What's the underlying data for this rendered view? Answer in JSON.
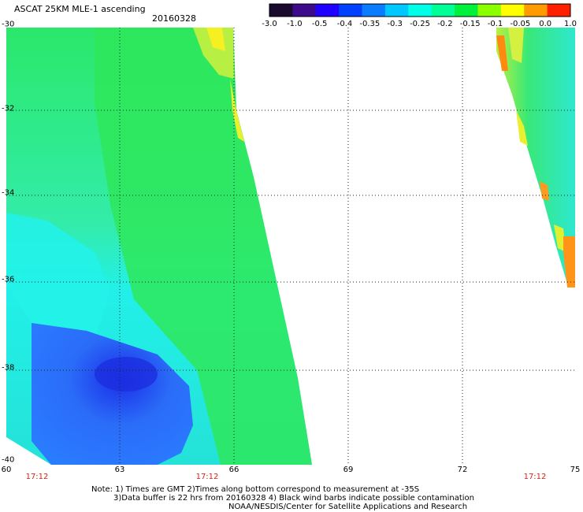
{
  "header": {
    "title": "ASCAT 25KM MLE-1 ascending",
    "date": "20160328"
  },
  "colorbar": {
    "labels": [
      "-3.0",
      "-1.0",
      "-0.5",
      "-0.4",
      "-0.35",
      "-0.3",
      "-0.25",
      "-0.2",
      "-0.15",
      "-0.1",
      "-0.05",
      "0.0",
      "1.0"
    ],
    "colors": [
      "#1a0a2e",
      "#3c0a8a",
      "#2000ff",
      "#0040ff",
      "#0a7cff",
      "#00c8ff",
      "#00ffe6",
      "#00ff96",
      "#00f03c",
      "#8cff00",
      "#ffff00",
      "#ff9a00",
      "#ff2000"
    ]
  },
  "axes": {
    "lat_labels": [
      "-30",
      "-32",
      "-34",
      "-36",
      "-38",
      "-40"
    ],
    "lon_labels": [
      "60",
      "63",
      "66",
      "69",
      "72",
      "75"
    ]
  },
  "times": [
    "17:12",
    "17:12",
    "17:12"
  ],
  "notes": [
    "Note: 1) Times are GMT 2)Times along bottom correspond to measurement at -35S",
    "3)Data buffer is 22 hrs from 20160328 4) Black wind barbs indicate possible contamination",
    "NOAA/NESDIS/Center for Satellite Applications and Research"
  ]
}
